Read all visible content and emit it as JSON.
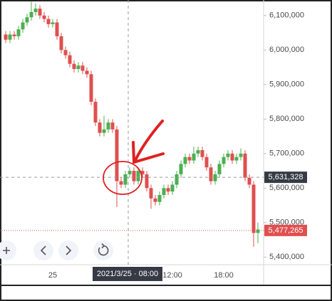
{
  "chart_data": {
    "type": "candlestick",
    "categories": [
      null,
      null,
      null,
      null,
      null,
      null,
      null,
      null,
      null,
      null,
      null,
      "25",
      null,
      null,
      null,
      null,
      null,
      null,
      null,
      null,
      null,
      null,
      null,
      null,
      null,
      null,
      null,
      null,
      null,
      null,
      null,
      null,
      null,
      null,
      null,
      null,
      null,
      null,
      null,
      "12:00",
      null,
      null,
      null,
      null,
      null,
      null,
      null,
      null,
      null,
      null,
      null,
      "18:00",
      null,
      null,
      null,
      null,
      null,
      null,
      null,
      null
    ],
    "open": [
      6045000,
      6030000,
      6045000,
      6040000,
      6060000,
      6080000,
      6095000,
      6110000,
      6120000,
      6100000,
      6090000,
      6075000,
      6080000,
      6040000,
      6000000,
      5985000,
      5960000,
      5945000,
      5955000,
      5940000,
      5930000,
      5850000,
      5790000,
      5760000,
      5770000,
      5790000,
      5770000,
      5620000,
      5610000,
      5640000,
      5650000,
      5620000,
      5650000,
      5640000,
      5600000,
      5570000,
      5560000,
      5580000,
      5600000,
      5590000,
      5610000,
      5640000,
      5670000,
      5690000,
      5680000,
      5700000,
      5710000,
      5690000,
      5660000,
      5620000,
      5640000,
      5670000,
      5690000,
      5700000,
      5680000,
      5690000,
      5700000,
      5630000,
      5610000,
      5470000
    ],
    "high": [
      6055000,
      6055000,
      6055000,
      6070000,
      6090000,
      6105000,
      6140000,
      6135000,
      6130000,
      6110000,
      6100000,
      6090000,
      6090000,
      6050000,
      6010000,
      5995000,
      5970000,
      5965000,
      5965000,
      5950000,
      5940000,
      5860000,
      5800000,
      5810000,
      5800000,
      5800000,
      5780000,
      5630000,
      5650000,
      5660000,
      5660000,
      5660000,
      5660000,
      5650000,
      5610000,
      5580000,
      5590000,
      5610000,
      5610000,
      5620000,
      5650000,
      5680000,
      5700000,
      5700000,
      5720000,
      5720000,
      5720000,
      5700000,
      5670000,
      5650000,
      5680000,
      5700000,
      5710000,
      5710000,
      5700000,
      5715000,
      5710000,
      5640000,
      5620000,
      5500000
    ],
    "low": [
      6020000,
      6020000,
      6030000,
      6030000,
      6050000,
      6070000,
      6085000,
      6100000,
      6090000,
      6080000,
      6065000,
      6065000,
      6030000,
      5990000,
      5975000,
      5950000,
      5935000,
      5935000,
      5930000,
      5920000,
      5840000,
      5780000,
      5750000,
      5750000,
      5760000,
      5760000,
      5545000,
      5600000,
      5600000,
      5630000,
      5610000,
      5610000,
      5630000,
      5590000,
      5540000,
      5550000,
      5550000,
      5570000,
      5580000,
      5580000,
      5600000,
      5630000,
      5660000,
      5670000,
      5670000,
      5690000,
      5680000,
      5650000,
      5610000,
      5610000,
      5630000,
      5660000,
      5680000,
      5670000,
      5670000,
      5680000,
      5620000,
      5600000,
      5430000,
      5440000
    ],
    "close": [
      6030000,
      6045000,
      6040000,
      6060000,
      6080000,
      6095000,
      6110000,
      6120000,
      6100000,
      6090000,
      6075000,
      6080000,
      6040000,
      6000000,
      5985000,
      5960000,
      5945000,
      5955000,
      5940000,
      5930000,
      5850000,
      5790000,
      5760000,
      5770000,
      5790000,
      5770000,
      5620000,
      5610000,
      5640000,
      5650000,
      5620000,
      5650000,
      5640000,
      5600000,
      5570000,
      5560000,
      5580000,
      5600000,
      5590000,
      5610000,
      5640000,
      5670000,
      5690000,
      5680000,
      5700000,
      5710000,
      5690000,
      5660000,
      5620000,
      5640000,
      5670000,
      5690000,
      5700000,
      5680000,
      5690000,
      5700000,
      5630000,
      5610000,
      5470000,
      5480000
    ],
    "up_color": "#4caf50",
    "down_color": "#e04f4f",
    "ylim": [
      5378000,
      6145000
    ],
    "yticks": [
      {
        "value": 5400000,
        "label": "5,400,000"
      },
      {
        "value": 5500000,
        "label": "5,500,000"
      },
      {
        "value": 5600000,
        "label": "5,600,000"
      },
      {
        "value": 5700000,
        "label": "5,700,000"
      },
      {
        "value": 5800000,
        "label": "5,800,000"
      },
      {
        "value": 5900000,
        "label": "5,900,000"
      },
      {
        "value": 6000000,
        "label": "6,000,000"
      },
      {
        "value": 6100000,
        "label": "6,100,000"
      }
    ],
    "crosshair": {
      "time_label": "2021/3/25 · 08:00",
      "price": {
        "value": 5631328,
        "label": "5,631,328"
      }
    },
    "last_price": {
      "value": 5477265,
      "label": "5,477,265"
    }
  }
}
